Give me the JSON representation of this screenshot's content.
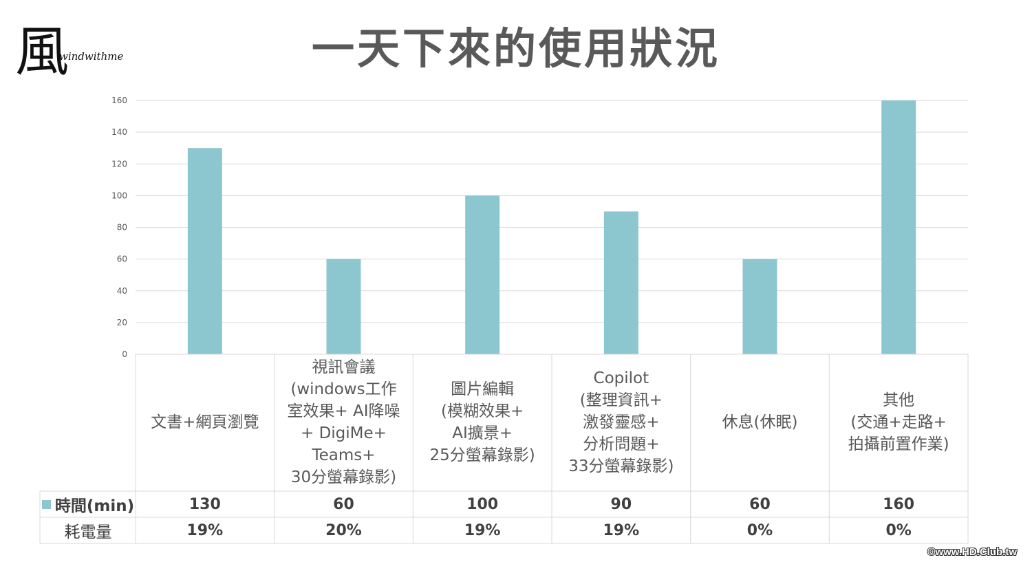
{
  "slide": {
    "title": "一天下來的使用狀況",
    "logo_text": "windwithme",
    "logo_glyph": "風",
    "copyright": "©www.HD.Club.tw"
  },
  "table": {
    "row1_label": "時間(min)",
    "row2_label": "耗電量",
    "power": [
      "19%",
      "20%",
      "19%",
      "19%",
      "0%",
      "0%"
    ]
  },
  "chart_data": {
    "type": "bar",
    "categories": [
      "文書+網頁瀏覽",
      "視訊會議 (windows工作室效果+ AI降噪 + DigiMe+ Teams+ 30分螢幕錄影)",
      "圖片編輯 (模糊效果+ AI擴景+ 25分螢幕錄影)",
      "Copilot (整理資訊+ 激發靈感+ 分析問題+ 33分螢幕錄影)",
      "休息(休眠)",
      "其他 (交通+走路+ 拍攝前置作業)"
    ],
    "category_lines": [
      [
        "文書+網頁瀏覽"
      ],
      [
        "視訊會議",
        "(windows工作",
        "室效果+ AI降噪",
        "+ DigiMe+",
        "Teams+",
        "30分螢幕錄影)"
      ],
      [
        "圖片編輯",
        "(模糊效果+",
        "AI擴景+",
        "25分螢幕錄影)"
      ],
      [
        "Copilot",
        "(整理資訊+",
        "激發靈感+",
        "分析問題+",
        "33分螢幕錄影)"
      ],
      [
        "休息(休眠)"
      ],
      [
        "其他",
        "(交通+走路+",
        "拍攝前置作業)"
      ]
    ],
    "series": [
      {
        "name": "時間(min)",
        "values": [
          130,
          60,
          100,
          90,
          60,
          160
        ],
        "color": "#8cc6cf"
      }
    ],
    "ylim": [
      0,
      160
    ],
    "yticks": [
      0,
      20,
      40,
      60,
      80,
      100,
      120,
      140,
      160
    ],
    "grid": true
  }
}
